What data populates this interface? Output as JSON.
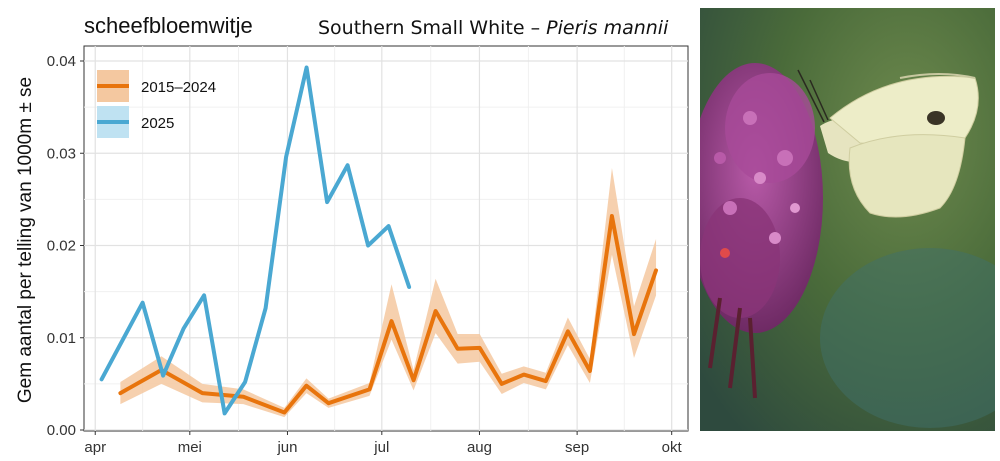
{
  "chart_data": {
    "type": "line",
    "title": "scheefbloemwitje",
    "subtitle_plain": "Southern Small White – ",
    "subtitle_italic": "Pieris mannii",
    "ylabel": "Gem aantal per telling van 1000m ± se",
    "xlabel": "",
    "ylim": [
      0,
      0.04
    ],
    "yticks": [
      "0.00",
      "0.01",
      "0.02",
      "0.03",
      "0.04"
    ],
    "xticks": [
      "apr",
      "mei",
      "jun",
      "jul",
      "aug",
      "sep",
      "okt"
    ],
    "grid": true,
    "legend_placement": "top-left",
    "x_units": "week of year (ticks at first of month)",
    "series": [
      {
        "name": "2015–2024",
        "color": "#E8740C",
        "band_color": "#F4C8A0",
        "x": [
          14.85,
          16.71,
          18.57,
          20.43,
          22.29,
          23.29,
          24.29,
          26.15,
          27.15,
          28.15,
          29.15,
          30.15,
          31.15,
          32.15,
          33.15,
          34.15,
          35.15,
          36.15,
          37.15,
          38.15,
          39.15
        ],
        "values": [
          0.004,
          0.0065,
          0.004,
          0.0036,
          0.0019,
          0.0048,
          0.0029,
          0.0044,
          0.0118,
          0.0054,
          0.0129,
          0.0088,
          0.0089,
          0.005,
          0.006,
          0.0053,
          0.0107,
          0.0064,
          0.0232,
          0.0104,
          0.0173
        ],
        "lower": [
          0.0028,
          0.005,
          0.003,
          0.0028,
          0.0014,
          0.004,
          0.0024,
          0.0037,
          0.0098,
          0.0043,
          0.0105,
          0.0072,
          0.0074,
          0.0039,
          0.0051,
          0.0044,
          0.0092,
          0.0051,
          0.019,
          0.0078,
          0.0146
        ],
        "upper": [
          0.0052,
          0.008,
          0.005,
          0.0044,
          0.0024,
          0.0056,
          0.0034,
          0.0051,
          0.0158,
          0.0065,
          0.0164,
          0.0104,
          0.0104,
          0.0061,
          0.0069,
          0.0062,
          0.0122,
          0.0077,
          0.0284,
          0.0134,
          0.0207
        ]
      },
      {
        "name": "2025",
        "color": "#4AA8D2",
        "band_color": "#BFE2F2",
        "x": [
          14.0,
          15.86,
          16.79,
          17.72,
          18.65,
          19.58,
          20.51,
          21.44,
          22.37,
          23.3,
          24.23,
          25.16,
          26.09,
          27.02,
          27.95,
          28.88,
          29.81,
          30.74,
          31.67
        ],
        "values": [
          0.0055,
          0.0138,
          0.0059,
          0.011,
          0.0146,
          0.0018,
          0.0052,
          0.0132,
          0.0296,
          0.0393,
          0.0247,
          0.0287,
          0.02,
          0.0221,
          0.0155,
          null,
          null,
          null,
          null
        ]
      }
    ]
  },
  "photo": {
    "description_icon": "butterfly-on-buddleia-photo",
    "bg_color": "#3E5A2E",
    "flower_color": "#9B3C8C",
    "wing_color": "#EDEDC8"
  }
}
